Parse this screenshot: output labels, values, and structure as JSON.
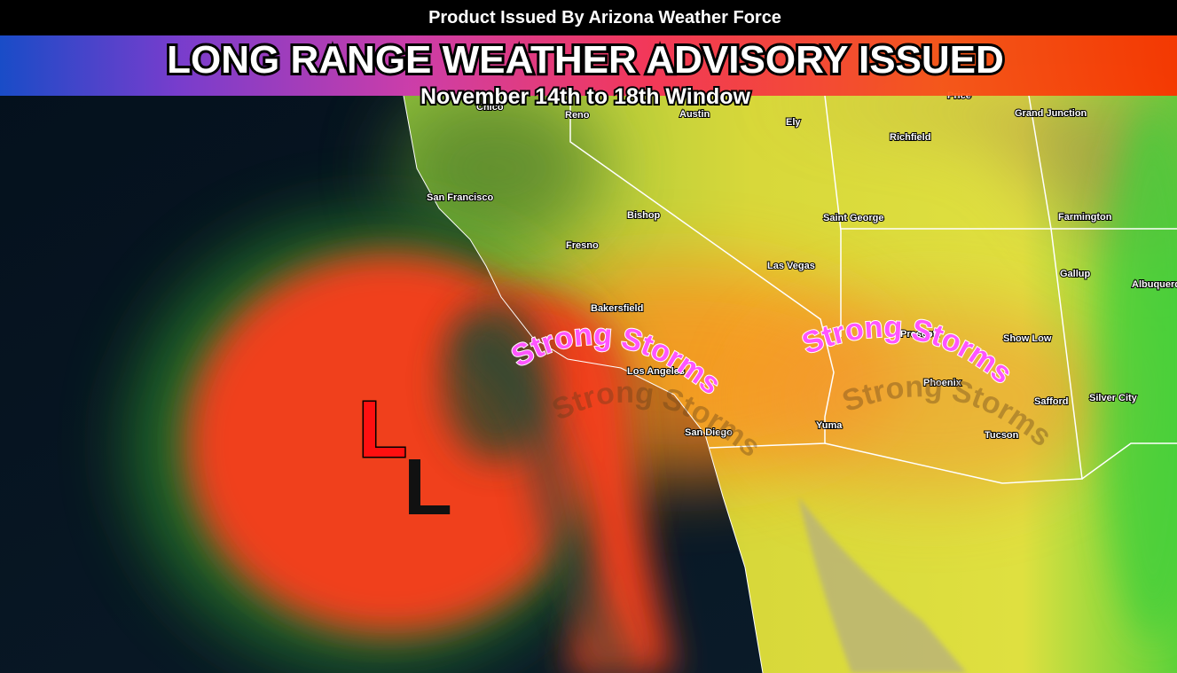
{
  "header": {
    "issuer": "Product Issued By Arizona Weather Force",
    "title": "LONG RANGE WEATHER ADVISORY ISSUED",
    "subtitle": "November 14th to 18th Window"
  },
  "map": {
    "annotations": [
      {
        "label": "Strong Storms"
      },
      {
        "label": "Strong Storms"
      }
    ],
    "low_pressure_labels": [
      "L",
      "L"
    ],
    "cities": [
      "Chico",
      "Reno",
      "Austin",
      "Ely",
      "Price",
      "Grand Junction",
      "Richfield",
      "San Francisco",
      "Bishop",
      "Saint George",
      "Farmington",
      "Fresno",
      "Las Vegas",
      "Gallup",
      "Albuquerque",
      "Bakersfield",
      "Prescott",
      "Show Low",
      "Los Angeles",
      "Phoenix",
      "Silver City",
      "Safford",
      "Yuma",
      "San Diego",
      "Tucson"
    ]
  }
}
